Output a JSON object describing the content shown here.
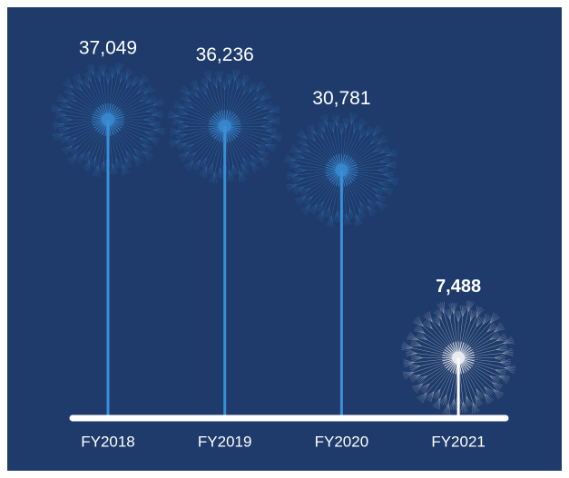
{
  "chart_data": {
    "type": "dandelion",
    "categories": [
      "FY2018",
      "FY2019",
      "FY2020",
      "FY2021"
    ],
    "values": [
      37049,
      36236,
      30781,
      7488
    ],
    "value_labels": [
      "37,049",
      "36,236",
      "30,781",
      "7,488"
    ],
    "colors": [
      "#3a8fd8",
      "#3a8fd8",
      "#3a8fd8",
      "#ffffff"
    ]
  }
}
